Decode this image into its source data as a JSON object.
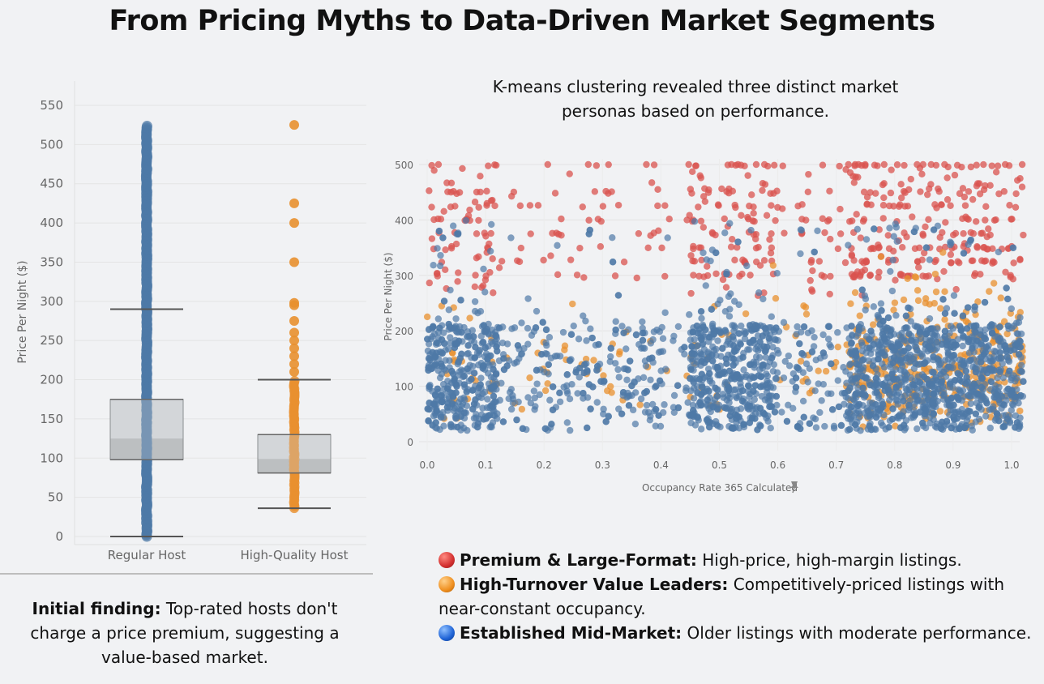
{
  "title": "From Pricing Myths to Data-Driven Market Segments",
  "left_caption": {
    "bold": "Initial finding:",
    "text": " Top-rated hosts don't charge a price premium, suggesting a value-based market."
  },
  "right_caption": "K-means clustering revealed three distinct market personas based on performance.",
  "legend": [
    {
      "color": "#d9423f",
      "icon": "red-circle-icon",
      "bold": "Premium & Large-Format:",
      "text": " High-price, high-margin listings."
    },
    {
      "color": "#e8902f",
      "icon": "orange-circle-icon",
      "bold": "High-Turnover Value Leaders:",
      "text": " Competitively-priced listings with near-constant occupancy."
    },
    {
      "color": "#2f6fd1",
      "icon": "blue-circle-icon",
      "bold": "Established Mid-Market:",
      "text": " Older listings with moderate performance."
    }
  ],
  "chart_data": [
    {
      "type": "box",
      "ylabel": "Price Per Night ($)",
      "xlabel": "",
      "ylim": [
        0,
        550
      ],
      "yticks": [
        0,
        50,
        100,
        150,
        200,
        250,
        300,
        350,
        400,
        450,
        500,
        550
      ],
      "categories": [
        "Regular Host",
        "High-Quality Host"
      ],
      "colors": [
        "#4e79a7",
        "#e8902f"
      ],
      "boxes": [
        {
          "name": "Regular Host",
          "min": 0,
          "q1": 98,
          "median": 125,
          "q3": 175,
          "max": 290
        },
        {
          "name": "High-Quality Host",
          "min": 36,
          "q1": 81,
          "median": 99,
          "q3": 130,
          "max": 200
        }
      ],
      "outliers": [
        {
          "category": "High-Quality Host",
          "values": [
            525,
            425,
            400,
            350,
            298,
            295,
            275,
            260,
            250,
            240,
            230,
            220,
            210
          ]
        }
      ],
      "grid": true
    },
    {
      "type": "scatter",
      "xlabel": "Occupancy Rate 365 Calculated",
      "ylabel": "Price Per Night ($)",
      "xlim": [
        0,
        1
      ],
      "ylim": [
        0,
        500
      ],
      "xticks": [
        "0.0",
        "0.1",
        "0.2",
        "0.3",
        "0.4",
        "0.5",
        "0.6",
        "0.7",
        "0.8",
        "0.9",
        "1.0"
      ],
      "yticks": [
        0,
        100,
        200,
        300,
        400,
        500
      ],
      "series": [
        {
          "name": "Premium & Large-Format",
          "color": "#d9534f"
        },
        {
          "name": "High-Turnover Value Leaders",
          "color": "#e8902f"
        },
        {
          "name": "Established Mid-Market",
          "color": "#4e79a7"
        }
      ],
      "grid": true
    }
  ]
}
